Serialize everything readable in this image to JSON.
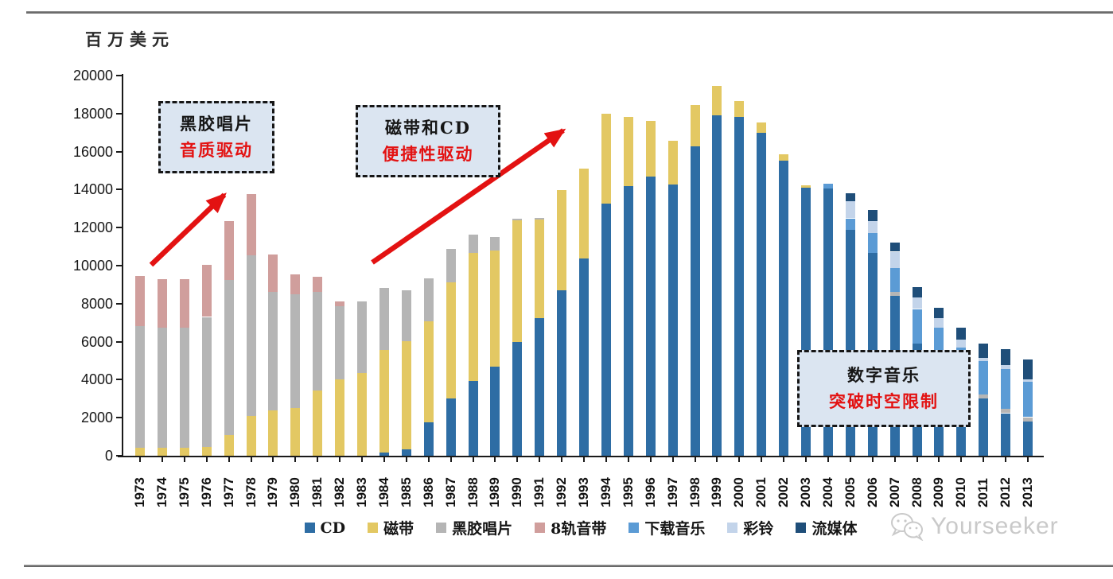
{
  "page": {
    "unit_label": "百万美元",
    "watermark_text": "Yourseeker"
  },
  "annotations": [
    {
      "line1": "黑胶唱片",
      "line2": "音质驱动"
    },
    {
      "line1": "磁带和CD",
      "line2": "便捷性驱动"
    },
    {
      "line1": "数字音乐",
      "line2": "突破时空限制"
    }
  ],
  "colors": {
    "cd": "#2e6da4",
    "cassette": "#e3c863",
    "vinyl": "#b5b5b5",
    "eight_track": "#d09e9c",
    "download": "#5b9bd5",
    "ringtone": "#c3d4ea",
    "streaming": "#1f4e79",
    "arrow_red": "#e31212",
    "annotation_bg": "#dbe5f1",
    "axis": "#1a1a1a",
    "watermark_gray": "#c9c9c9"
  },
  "chart_data": {
    "type": "bar",
    "stacked": true,
    "title": "",
    "xlabel": "",
    "ylabel": "百万美元",
    "ylim": [
      0,
      20000
    ],
    "ytick_step": 2000,
    "grid": false,
    "legend_position": "bottom",
    "categories": [
      1973,
      1974,
      1975,
      1976,
      1977,
      1978,
      1979,
      1980,
      1981,
      1982,
      1983,
      1984,
      1985,
      1986,
      1987,
      1988,
      1989,
      1990,
      1991,
      1992,
      1993,
      1994,
      1995,
      1996,
      1997,
      1998,
      1999,
      2000,
      2001,
      2002,
      2003,
      2004,
      2005,
      2006,
      2007,
      2008,
      2009,
      2010,
      2011,
      2012,
      2013
    ],
    "series": [
      {
        "name": "CD",
        "color": "#2e6da4",
        "values": [
          0,
          0,
          0,
          0,
          0,
          0,
          0,
          0,
          0,
          0,
          0,
          150,
          350,
          1760,
          3020,
          3930,
          4700,
          5990,
          7250,
          8700,
          10390,
          13260,
          14200,
          14670,
          14270,
          16280,
          17890,
          17820,
          16980,
          15510,
          14100,
          14060,
          11900,
          10670,
          8420,
          5900,
          5000,
          3700,
          3020,
          2240,
          1820
        ]
      },
      {
        "name": "磁带",
        "color": "#e3c863",
        "values": [
          400,
          400,
          420,
          450,
          1100,
          2100,
          2380,
          2520,
          3440,
          4000,
          4350,
          5410,
          5670,
          5330,
          6100,
          6730,
          6110,
          6400,
          5180,
          5260,
          4700,
          4740,
          3620,
          2950,
          2290,
          2170,
          1550,
          840,
          560,
          350,
          140,
          0,
          0,
          0,
          0,
          0,
          0,
          0,
          0,
          0,
          0
        ]
      },
      {
        "name": "黑胶唱片",
        "color": "#b5b5b5",
        "values": [
          6420,
          6340,
          6320,
          6850,
          8160,
          8430,
          6250,
          5970,
          5190,
          3850,
          3790,
          3280,
          2700,
          2250,
          1750,
          990,
          700,
          100,
          100,
          0,
          0,
          0,
          0,
          0,
          0,
          0,
          0,
          0,
          0,
          0,
          0,
          0,
          0,
          0,
          210,
          0,
          0,
          0,
          210,
          210,
          210
        ]
      },
      {
        "name": "8轨音带",
        "color": "#d09e9c",
        "values": [
          2650,
          2530,
          2530,
          2730,
          3090,
          3230,
          1970,
          1060,
          770,
          250,
          0,
          0,
          0,
          0,
          0,
          0,
          0,
          0,
          0,
          0,
          0,
          0,
          0,
          0,
          0,
          0,
          0,
          0,
          0,
          0,
          0,
          0,
          0,
          0,
          0,
          0,
          0,
          0,
          0,
          0,
          0
        ]
      },
      {
        "name": "下载音乐",
        "color": "#5b9bd5",
        "values": [
          0,
          0,
          0,
          0,
          0,
          0,
          0,
          0,
          0,
          0,
          0,
          0,
          0,
          0,
          0,
          0,
          0,
          0,
          0,
          0,
          0,
          0,
          0,
          0,
          0,
          0,
          0,
          0,
          0,
          0,
          0,
          250,
          590,
          1050,
          1260,
          1820,
          1740,
          1980,
          1750,
          2120,
          1870
        ]
      },
      {
        "name": "彩铃",
        "color": "#c3d4ea",
        "values": [
          0,
          0,
          0,
          0,
          0,
          0,
          0,
          0,
          0,
          0,
          0,
          0,
          0,
          0,
          0,
          0,
          0,
          0,
          0,
          0,
          0,
          0,
          0,
          0,
          0,
          0,
          0,
          0,
          0,
          0,
          0,
          0,
          910,
          630,
          840,
          590,
          490,
          420,
          150,
          200,
          100
        ]
      },
      {
        "name": "流媒体",
        "color": "#1f4e79",
        "values": [
          0,
          0,
          0,
          0,
          0,
          0,
          0,
          0,
          0,
          0,
          0,
          0,
          0,
          0,
          0,
          0,
          0,
          0,
          0,
          0,
          0,
          0,
          0,
          0,
          0,
          0,
          0,
          0,
          0,
          0,
          0,
          0,
          420,
          590,
          490,
          560,
          560,
          630,
          770,
          840,
          1080
        ]
      }
    ]
  }
}
